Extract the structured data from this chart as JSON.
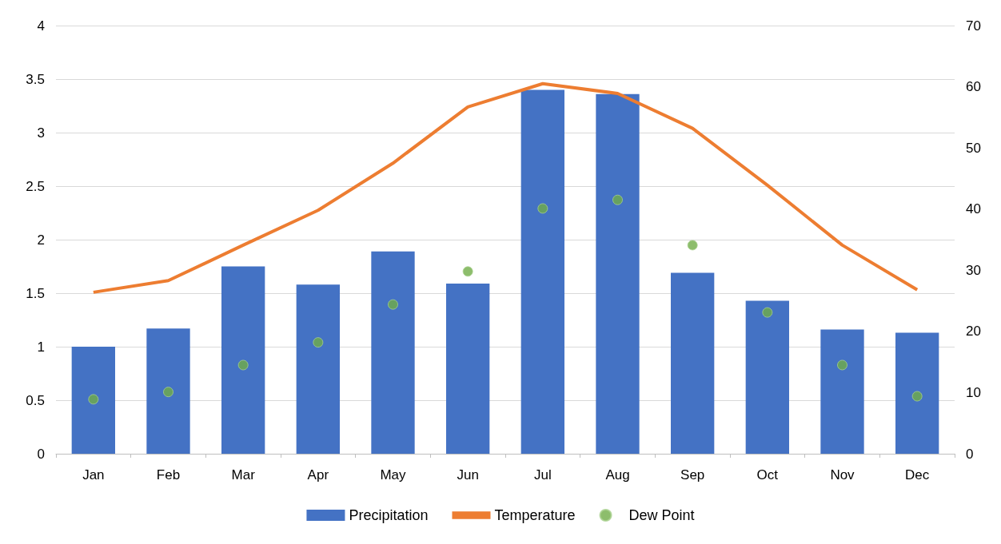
{
  "chart_data": {
    "type": "bar",
    "categories": [
      "Jan",
      "Feb",
      "Mar",
      "Apr",
      "May",
      "Jun",
      "Jul",
      "Aug",
      "Sep",
      "Oct",
      "Nov",
      "Dec"
    ],
    "series": [
      {
        "name": "Precipitation",
        "color": "#4472c4",
        "values": [
          1.0,
          1.17,
          1.75,
          1.58,
          1.89,
          1.59,
          3.4,
          3.36,
          1.69,
          1.43,
          1.16,
          1.13
        ]
      },
      {
        "name": "Temperature",
        "type": "line",
        "axis": "y2",
        "color": "#ed7d31",
        "values": [
          26.4,
          28.3,
          34.1,
          39.8,
          47.5,
          56.7,
          60.5,
          58.9,
          53.2,
          43.9,
          34.1,
          26.8
        ]
      },
      {
        "name": "Dew Point",
        "type": "scatter",
        "axis": "y2",
        "marker": "circle",
        "color": "#70ad47",
        "values": [
          8.9,
          10.1,
          14.5,
          18.2,
          24.4,
          29.8,
          40.1,
          41.5,
          34.1,
          23.1,
          14.5,
          9.4
        ]
      }
    ],
    "ylim": [
      0,
      4
    ],
    "yticks": [
      0,
      0.5,
      1,
      1.5,
      2,
      2.5,
      3,
      3.5,
      4
    ],
    "y2lim": [
      0,
      70
    ],
    "y2ticks": [
      0,
      10,
      20,
      30,
      40,
      50,
      60,
      70
    ],
    "grid": "y",
    "legend": "bottom"
  }
}
